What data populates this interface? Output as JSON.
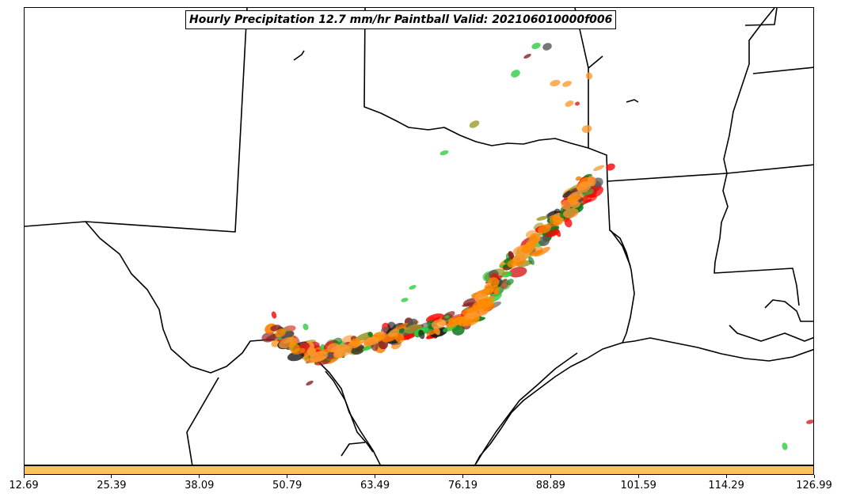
{
  "title": "Hourly Precipitation 12.7 mm/hr Paintball Valid: 202106010000f006",
  "map": {
    "region": "Texas, Oklahoma, Louisiana and surrounding states",
    "boundary_color": "#000000",
    "background_color": "#ffffff",
    "paintball_colors": [
      "#ff7f00",
      "#ff9a33",
      "#ff0000",
      "#d42020",
      "#2ecc40",
      "#0f7a1e",
      "#8b2020",
      "#9a9a2a",
      "#555555",
      "#1a1a1a"
    ]
  },
  "colorbar": {
    "color": "#ffc060",
    "ticks": [
      "12.69",
      "25.39",
      "38.09",
      "50.79",
      "63.49",
      "76.19",
      "88.89",
      "101.59",
      "114.29",
      "126.99"
    ]
  }
}
